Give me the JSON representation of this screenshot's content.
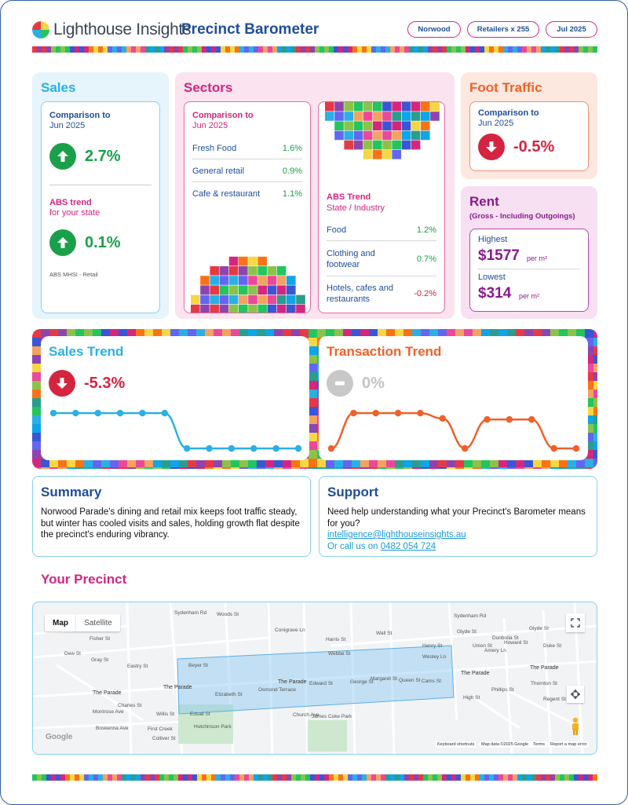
{
  "header": {
    "brand": "Lighthouse Insights",
    "title": "Precinct Barometer",
    "pills": [
      "Norwood",
      "Retailers x 255",
      "Jul 2025"
    ]
  },
  "sales": {
    "title": "Sales",
    "comparison_label": "Comparison to",
    "comparison_period": "Jun 2025",
    "comparison_value": "2.7%",
    "abs_label": "ABS trend",
    "abs_sub": "for your state",
    "abs_value": "0.1%",
    "footnote": "ABS MHSI - Retail"
  },
  "sectors": {
    "title": "Sectors",
    "comparison_label": "Comparison to",
    "comparison_period": "Jun 2025",
    "items": [
      {
        "name": "Fresh Food",
        "value": "1.6%"
      },
      {
        "name": "General retail",
        "value": "0.9%"
      },
      {
        "name": "Cafe & restaurant",
        "value": "1.1%"
      }
    ],
    "abs_label": "ABS Trend",
    "abs_sub": "State / Industry",
    "abs_items": [
      {
        "name": "Food",
        "value": "1.2%"
      },
      {
        "name": "Clothing and footwear",
        "value": "0.7%"
      },
      {
        "name": "Hotels, cafes and restaurants",
        "value": "-0.2%"
      }
    ]
  },
  "foot_traffic": {
    "title": "Foot Traffic",
    "comparison_label": "Comparison to",
    "comparison_period": "Jun 2025",
    "value": "-0.5%"
  },
  "rent": {
    "title": "Rent",
    "subtitle": "(Gross - Including Outgoings)",
    "highest_label": "Highest",
    "highest_value": "$1577",
    "lowest_label": "Lowest",
    "lowest_value": "$314",
    "unit": "per m²"
  },
  "sales_trend": {
    "title": "Sales Trend",
    "value": "-5.3%",
    "points": [
      1,
      1,
      1,
      1,
      1,
      1,
      0,
      0,
      0,
      0,
      0,
      0
    ]
  },
  "transaction_trend": {
    "title": "Transaction Trend",
    "value": "0%",
    "points": [
      0,
      1,
      1,
      1,
      1,
      0.85,
      0,
      0.82,
      0.82,
      0.82,
      0,
      0
    ]
  },
  "summary": {
    "title": "Summary",
    "text": "Norwood Parade's dining and retail mix keeps foot traffic steady, but winter has cooled visits and sales, holding growth flat despite the precinct's enduring vibrancy."
  },
  "support": {
    "title": "Support",
    "text": "Need help understanding what your Precinct's Barometer means for you?",
    "email": "intelligence@lighthouseinsights.au",
    "call_prefix": "Or call us on",
    "phone": "0482 054 724"
  },
  "precinct": {
    "title": "Your Precinct",
    "map_tab": "Map",
    "satellite_tab": "Satellite",
    "footer_items": [
      "Keyboard shortcuts",
      "Map data ©2025 Google",
      "Terms",
      "Report a map error"
    ],
    "google": "Google",
    "streets": [
      "Fisher St",
      "Gray St",
      "Dew St",
      "The Parade",
      "Montrose Ave",
      "Boskenna Ave",
      "Willis St",
      "Edsall St",
      "Colliver St",
      "First Creek",
      "Beyer St",
      "The Parade",
      "The Parade",
      "Webbe St",
      "Harris St",
      "Conigrave Ln",
      "Wall St",
      "Henry St",
      "Wesley Ln",
      "Glyde St",
      "Glyde St",
      "The Parade",
      "The Parade",
      "High St",
      "Phillips St",
      "Regent St",
      "Thornton St",
      "Hutchinson Park",
      "James Coke Park",
      "Sydenham Rd",
      "Woods St",
      "Eastry St",
      "Charles St",
      "Elizabeth St",
      "Osmond Terrace",
      "Church Ave",
      "Edward St",
      "George St",
      "Margaret St",
      "Queen St",
      "Cams St",
      "Union St",
      "Dunbolia St",
      "Amery Ln",
      "Howard St",
      "Duke St",
      "Sydenham Rd"
    ]
  },
  "colors": {
    "blue": "#1f4e99",
    "cyan": "#2bb0e3",
    "magenta": "#d4267f",
    "orange": "#f0602a",
    "purple": "#8a1a8c",
    "green": "#1aa04a",
    "red": "#d42440"
  }
}
